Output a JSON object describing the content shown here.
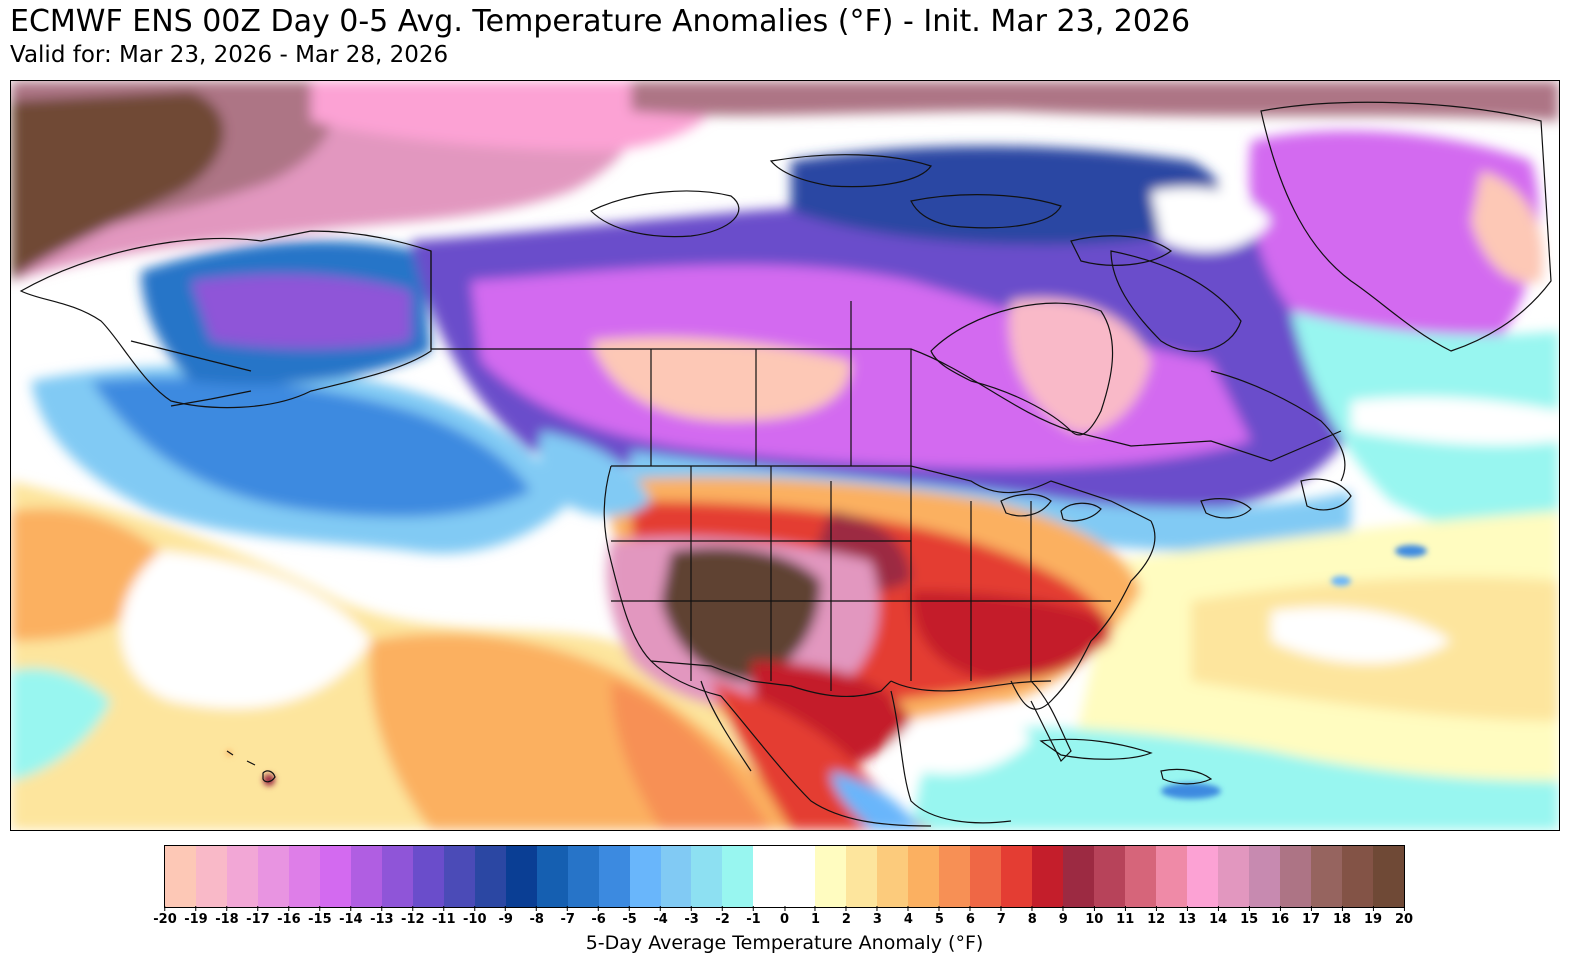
{
  "header": {
    "title": "ECMWF ENS 00Z Day 0-5 Avg. Temperature Anomalies (°F) - Init. Mar 23, 2026",
    "subtitle": "Valid for: Mar 23, 2026 - Mar 28, 2026"
  },
  "colors": {
    "background": "#ffffff",
    "border": "#000000",
    "borderline": "#111111"
  },
  "colorbar": {
    "label": "5-Day Average Temperature Anomaly (°F)",
    "ticks": [
      "-20",
      "-19",
      "-18",
      "-17",
      "-16",
      "-15",
      "-14",
      "-13",
      "-12",
      "-11",
      "-10",
      "-9",
      "-8",
      "-7",
      "-6",
      "-5",
      "-4",
      "-3",
      "-2",
      "-1",
      "0",
      "1",
      "2",
      "3",
      "4",
      "5",
      "6",
      "7",
      "8",
      "9",
      "10",
      "11",
      "12",
      "13",
      "14",
      "15",
      "16",
      "17",
      "18",
      "19",
      "20"
    ],
    "colors": [
      "#fdc8b6",
      "#f9b9c8",
      "#f2a7d6",
      "#e894e1",
      "#de7ee8",
      "#d36af0",
      "#b05ee2",
      "#8f55d8",
      "#6a4dcb",
      "#4b4bb7",
      "#2b47a3",
      "#0a3e94",
      "#155fb1",
      "#2774c8",
      "#3c8ae0",
      "#69b6fb",
      "#81caf4",
      "#8de0f2",
      "#98f6f0",
      "#ffffff",
      "#ffffff",
      "#fffcc0",
      "#fde59d",
      "#fccb7c",
      "#fbb061",
      "#f79055",
      "#ef6745",
      "#e43d33",
      "#c41e2b",
      "#9c2a42",
      "#b7435a",
      "#d6657a",
      "#ef8aa7",
      "#fca2d4",
      "#e297bf",
      "#c78ab0",
      "#ad7485",
      "#96645f",
      "#835346",
      "#6f4936",
      "#5e4330"
    ]
  },
  "map": {
    "region": "North America",
    "features": [
      "Canada",
      "United States",
      "Mexico",
      "Greenland",
      "Alaska",
      "Hawaii",
      "Cuba",
      "Hudson Bay",
      "Gulf of Mexico",
      "Caribbean Sea",
      "Pacific Ocean",
      "Atlantic Ocean"
    ]
  }
}
